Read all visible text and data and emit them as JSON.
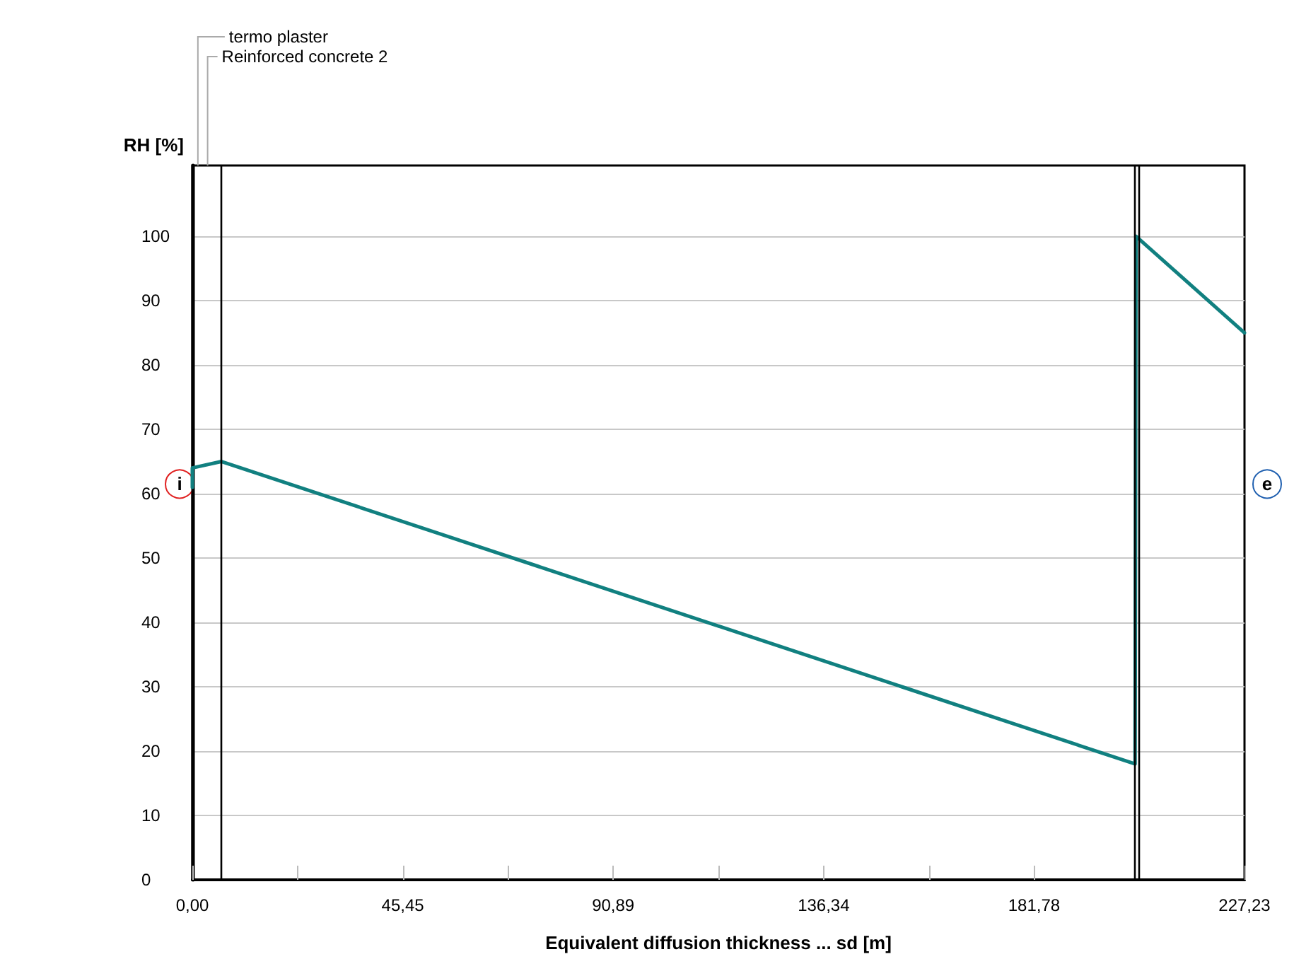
{
  "chart_data": {
    "type": "line",
    "xlabel": "Equivalent diffusion thickness ... sd [m]",
    "ylabel": "RH [%]",
    "x": [
      0,
      0,
      6.3,
      203.6,
      203.8,
      227.23
    ],
    "series": [
      {
        "color": "#118080",
        "values": [
          61,
          64,
          65,
          18,
          100,
          85
        ]
      }
    ],
    "xlim": [
      0,
      227.23
    ],
    "xticks": [
      {
        "value": 0,
        "label": "0,00"
      },
      {
        "value": 22.72,
        "label": null
      },
      {
        "value": 45.45,
        "label": "45,45"
      },
      {
        "value": 68.17,
        "label": null
      },
      {
        "value": 90.89,
        "label": "90,89"
      },
      {
        "value": 113.62,
        "label": null
      },
      {
        "value": 136.34,
        "label": "136,34"
      },
      {
        "value": 159.06,
        "label": null
      },
      {
        "value": 181.78,
        "label": "181,78"
      },
      {
        "value": 204.51,
        "label": null
      },
      {
        "value": 227.23,
        "label": "227,23"
      }
    ],
    "ylim": [
      0,
      111
    ],
    "yticks": [
      0,
      10,
      20,
      30,
      40,
      50,
      60,
      70,
      80,
      90,
      100
    ],
    "grid": "y",
    "marker": "none",
    "line_style": "solid",
    "ref_lines": [
      {
        "axis": "x",
        "value": 6.3,
        "color": "#000000"
      },
      {
        "axis": "x",
        "value": 203.6,
        "color": "#000000"
      },
      {
        "axis": "x",
        "value": 204.5,
        "color": "#000000"
      }
    ],
    "annotations": [
      "termo plaster",
      "Reinforced concrete 2",
      "i",
      "e"
    ]
  }
}
